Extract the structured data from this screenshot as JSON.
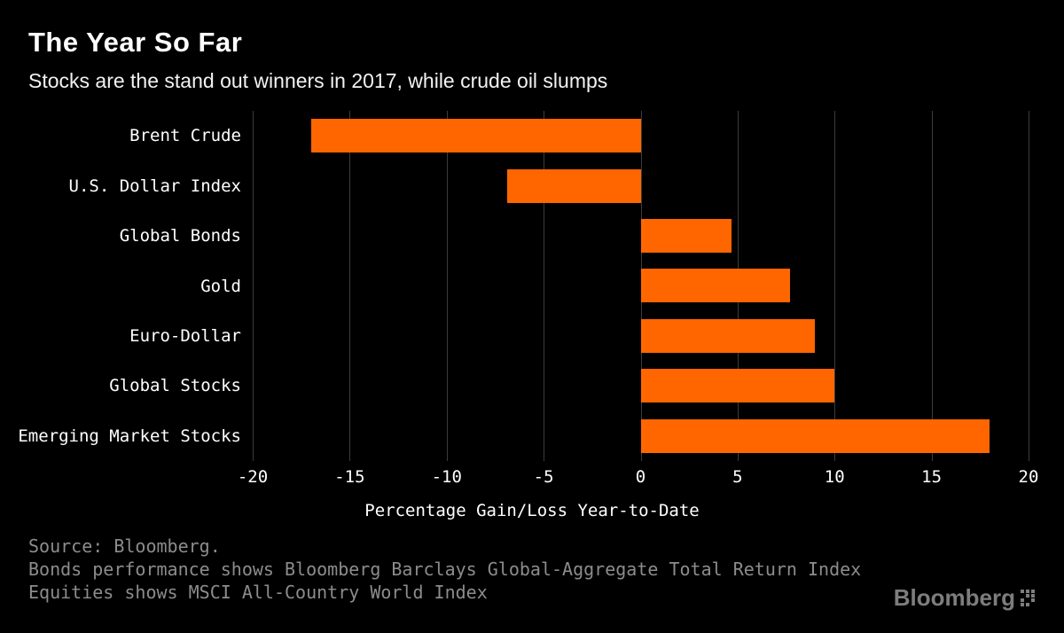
{
  "colors": {
    "background": "#000000",
    "bar": "#FF6600",
    "grid": "#3c3c3c",
    "text": "#ffffff",
    "muted": "#8c8c8c"
  },
  "chart_data": {
    "type": "bar",
    "orientation": "horizontal",
    "title": "The Year So Far",
    "subtitle": "Stocks are the stand out winners in 2017, while crude oil slumps",
    "categories": [
      "Brent Crude",
      "U.S. Dollar Index",
      "Global Bonds",
      "Gold",
      "Euro-Dollar",
      "Global Stocks",
      "Emerging Market Stocks"
    ],
    "values": [
      -17,
      -6.9,
      4.7,
      7.7,
      9,
      10,
      18
    ],
    "xlabel": "Percentage Gain/Loss Year-to-Date",
    "ylabel": "",
    "xlim": [
      -20,
      20
    ],
    "xticks": [
      -20,
      -15,
      -10,
      -5,
      0,
      5,
      10,
      15,
      20
    ],
    "grid": true,
    "legend": "none",
    "bar_color": "#FF6600"
  },
  "footer": {
    "source_lines": [
      "Source: Bloomberg.",
      "Bonds performance shows Bloomberg Barclays Global-Aggregate Total Return Index",
      "Equities shows MSCI All-Country World Index"
    ],
    "logo_text": "Bloomberg"
  }
}
